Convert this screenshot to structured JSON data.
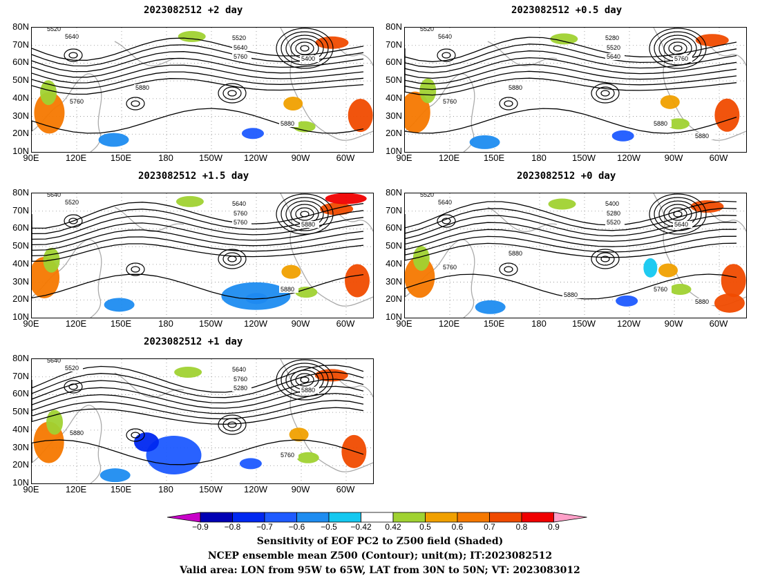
{
  "panels": [
    {
      "title": "2023082512 +2 day"
    },
    {
      "title": "2023082512 +0.5 day"
    },
    {
      "title": "2023082512 +1.5 day"
    },
    {
      "title": "2023082512 +0 day"
    },
    {
      "title": "2023082512 +1 day"
    }
  ],
  "axes": {
    "lat_labels": [
      "80N",
      "70N",
      "60N",
      "50N",
      "40N",
      "30N",
      "20N",
      "10N"
    ],
    "lon_labels": [
      "90E",
      "120E",
      "150E",
      "180",
      "150W",
      "120W",
      "90W",
      "60W"
    ]
  },
  "contour_labels": {
    "p0": [
      "5520",
      "5640",
      "5520",
      "5640",
      "5760",
      "5400",
      "5880",
      "5760",
      "5880"
    ],
    "p1": [
      "5520",
      "5640",
      "5280",
      "5520",
      "5640",
      "5760",
      "5880",
      "5760",
      "5880",
      "5880"
    ],
    "p2": [
      "5640",
      "5520",
      "5640",
      "5760",
      "5760",
      "5880",
      "5880"
    ],
    "p3": [
      "5520",
      "5640",
      "5400",
      "5280",
      "5520",
      "5640",
      "5760",
      "5760",
      "5880",
      "5880",
      "5880"
    ],
    "p4": [
      "5640",
      "5520",
      "5640",
      "5760",
      "5280",
      "5880",
      "5760",
      "5880"
    ]
  },
  "colorbar": {
    "labels": [
      "−0.9",
      "−0.8",
      "−0.7",
      "−0.6",
      "−0.5",
      "−0.42",
      "0.42",
      "0.5",
      "0.6",
      "0.7",
      "0.8",
      "0.9"
    ],
    "colors": [
      "#0000b4",
      "#0028f0",
      "#1e5aff",
      "#1e8cf0",
      "#14c8f0",
      "#ffffff",
      "#a0d232",
      "#f0a000",
      "#f57800",
      "#f04b00",
      "#f00000"
    ],
    "low_end_color": "#c800c8",
    "high_end_color": "#ffa0c8"
  },
  "caption": {
    "line1": "Sensitivity of EOF PC2 to Z500 field (Shaded)",
    "line2": "NCEP ensemble mean Z500 (Contour); unit(m); IT:2023082512",
    "line3": "Valid area: LON from 95W to 65W, LAT from 30N to 50N; VT: 2023083012"
  }
}
